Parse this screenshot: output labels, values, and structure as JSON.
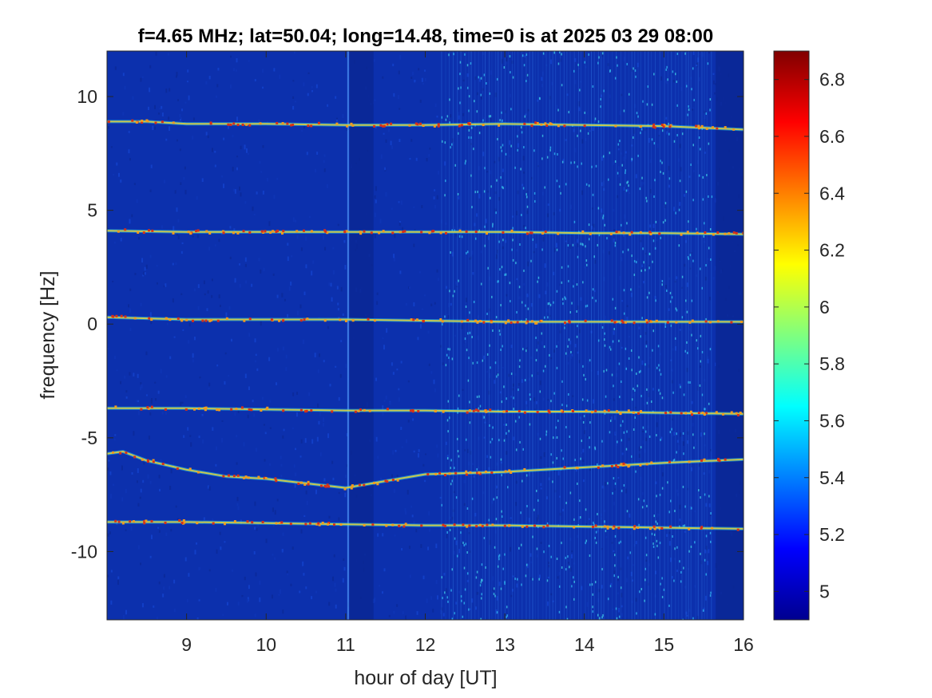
{
  "chart_data": {
    "type": "heatmap",
    "title": "f=4.65 MHz;  lat=50.04; long=14.48, time=0 is at 2025 03 29 08:00",
    "xlabel": "hour of day [UT]",
    "ylabel": "frequency [Hz]",
    "xlim": [
      8,
      16
    ],
    "ylim": [
      -13,
      12
    ],
    "x_ticks": [
      9,
      10,
      11,
      12,
      13,
      14,
      15,
      16
    ],
    "y_ticks": [
      10,
      5,
      0,
      -5,
      -10
    ],
    "colormap": "jet",
    "clim": [
      4.9,
      6.9
    ],
    "colorbar_ticks": [
      6.8,
      6.6,
      6.4,
      6.2,
      6,
      5.8,
      5.6,
      5.4,
      5.2,
      5
    ],
    "background_colors": [
      "#0b2a9c",
      "#0e34b4",
      "#123fc7"
    ],
    "traces": [
      {
        "x": [
          8.0,
          8.5,
          9.0,
          10.0,
          11.0,
          12.0,
          13.0,
          14.0,
          15.0,
          16.0
        ],
        "y": [
          8.9,
          8.9,
          8.8,
          8.8,
          8.75,
          8.75,
          8.8,
          8.75,
          8.7,
          8.55
        ]
      },
      {
        "x": [
          8.0,
          9.0,
          10.0,
          11.0,
          12.0,
          13.0,
          14.0,
          15.0,
          16.0
        ],
        "y": [
          4.1,
          4.05,
          4.05,
          4.05,
          4.05,
          4.05,
          4.0,
          4.0,
          3.95
        ]
      },
      {
        "x": [
          8.0,
          9.0,
          10.0,
          11.0,
          12.0,
          13.0,
          14.0,
          15.0,
          16.0
        ],
        "y": [
          0.3,
          0.2,
          0.2,
          0.2,
          0.15,
          0.1,
          0.1,
          0.1,
          0.1
        ]
      },
      {
        "x": [
          8.0,
          9.0,
          10.0,
          11.0,
          12.0,
          13.0,
          14.0,
          15.0,
          16.0
        ],
        "y": [
          -3.7,
          -3.7,
          -3.75,
          -3.8,
          -3.8,
          -3.85,
          -3.85,
          -3.9,
          -3.95
        ]
      },
      {
        "x": [
          8.0,
          8.2,
          8.5,
          9.0,
          9.5,
          10.0,
          10.5,
          11.0,
          11.5,
          12.0,
          13.0,
          14.0,
          15.0,
          16.0
        ],
        "y": [
          -5.7,
          -5.6,
          -6.0,
          -6.4,
          -6.7,
          -6.8,
          -7.0,
          -7.2,
          -6.9,
          -6.6,
          -6.5,
          -6.3,
          -6.1,
          -5.95
        ]
      },
      {
        "x": [
          8.0,
          9.0,
          10.0,
          11.0,
          12.0,
          13.0,
          14.0,
          15.0,
          16.0
        ],
        "y": [
          -8.7,
          -8.7,
          -8.75,
          -8.8,
          -8.85,
          -8.85,
          -8.9,
          -8.95,
          -9.0
        ]
      }
    ],
    "dark_bands_x": [
      [
        11.05,
        11.35
      ],
      [
        15.65,
        16.0
      ]
    ],
    "bright_line_x": [
      11.02
    ]
  }
}
